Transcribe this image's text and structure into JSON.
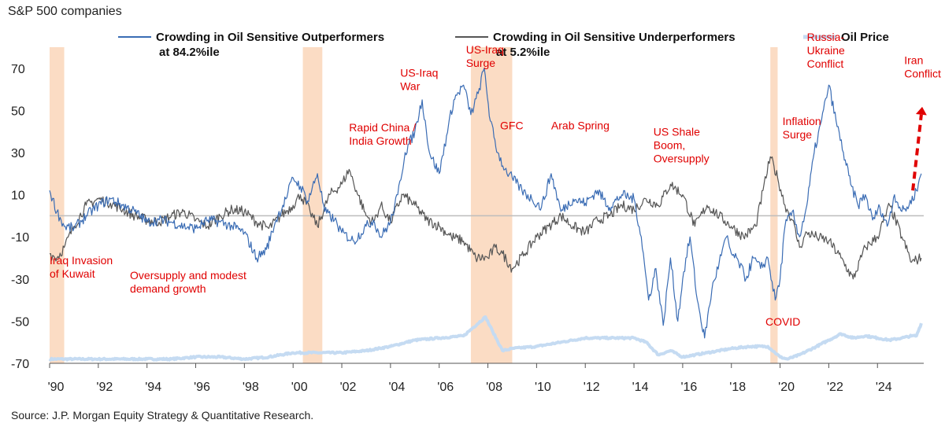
{
  "header": {
    "title": "S&P 500 companies"
  },
  "footer": {
    "source": "Source: J.P. Morgan Equity Strategy & Quantitative Research."
  },
  "chart_data": {
    "type": "line",
    "ylim": [
      -70,
      80
    ],
    "yticks": [
      70,
      50,
      30,
      10,
      -10,
      -30,
      -50,
      -70
    ],
    "xlim": [
      1990,
      2025.9
    ],
    "xticks": [
      {
        "x": 1990,
        "label": "'90"
      },
      {
        "x": 1992,
        "label": "'92"
      },
      {
        "x": 1994,
        "label": "'94"
      },
      {
        "x": 1996,
        "label": "'96"
      },
      {
        "x": 1998,
        "label": "'98"
      },
      {
        "x": 2000,
        "label": "'00"
      },
      {
        "x": 2002,
        "label": "'02"
      },
      {
        "x": 2004,
        "label": "'04"
      },
      {
        "x": 2006,
        "label": "'06"
      },
      {
        "x": 2008,
        "label": "'08"
      },
      {
        "x": 2010,
        "label": "'10"
      },
      {
        "x": 2012,
        "label": "'12"
      },
      {
        "x": 2014,
        "label": "'14"
      },
      {
        "x": 2016,
        "label": "'16"
      },
      {
        "x": 2018,
        "label": "'18"
      },
      {
        "x": 2020,
        "label": "'20"
      },
      {
        "x": 2022,
        "label": "'22"
      },
      {
        "x": 2024,
        "label": "'24"
      }
    ],
    "colors": {
      "outperformers": "#3a6cb4",
      "underperformers": "#555555",
      "oil": "#c5dbf2",
      "shade": "#fbdcc4",
      "annotation": "#e00000",
      "zero": "#bdbdbd"
    },
    "legend": [
      {
        "key": "outperformers",
        "name": "Crowding in Oil Sensitive Outperformers",
        "sub": "at 84.2%ile"
      },
      {
        "key": "underperformers",
        "name": "Crowding in Oil Sensitive Underperformers",
        "sub": "at 5.2%ile"
      },
      {
        "key": "oil",
        "name": "Oil Price",
        "sub": ""
      }
    ],
    "shaded_periods": [
      [
        1990.0,
        1990.6
      ],
      [
        2000.4,
        2001.2
      ],
      [
        2007.3,
        2009.0
      ],
      [
        2019.6,
        2019.9
      ]
    ],
    "series": [
      {
        "key": "outperformers",
        "name": "Crowding in Oil Sensitive Outperformers",
        "x": [
          1990.0,
          1990.3,
          1990.6,
          1991.0,
          1991.5,
          1992.0,
          1992.5,
          1993.0,
          1993.5,
          1994.0,
          1994.5,
          1995.0,
          1995.5,
          1996.0,
          1996.5,
          1997.0,
          1997.5,
          1998.0,
          1998.5,
          1998.9,
          1999.3,
          1999.7,
          2000.0,
          2000.3,
          2000.6,
          2001.0,
          2001.3,
          2001.7,
          2002.0,
          2002.5,
          2003.0,
          2003.3,
          2003.6,
          2004.0,
          2004.3,
          2004.6,
          2005.0,
          2005.3,
          2005.6,
          2006.0,
          2006.3,
          2006.6,
          2007.0,
          2007.3,
          2007.6,
          2007.85,
          2008.1,
          2008.4,
          2008.7,
          2009.0,
          2009.4,
          2009.8,
          2010.2,
          2010.6,
          2011.0,
          2011.5,
          2012.0,
          2012.5,
          2013.0,
          2013.5,
          2014.0,
          2014.3,
          2014.6,
          2014.9,
          2015.2,
          2015.5,
          2015.8,
          2016.0,
          2016.3,
          2016.6,
          2016.9,
          2017.2,
          2017.5,
          2017.8,
          2018.0,
          2018.3,
          2018.6,
          2018.9,
          2019.2,
          2019.5,
          2019.8,
          2020.0,
          2020.2,
          2020.5,
          2020.8,
          2021.1,
          2021.4,
          2021.7,
          2022.0,
          2022.3,
          2022.6,
          2022.9,
          2023.2,
          2023.5,
          2023.8,
          2024.1,
          2024.4,
          2024.7,
          2025.0,
          2025.3,
          2025.6,
          2025.8
        ],
        "values": [
          12,
          2,
          -5,
          -6,
          0,
          5,
          8,
          5,
          2,
          -3,
          -2,
          -3,
          -5,
          -6,
          -2,
          -3,
          -5,
          -8,
          -20,
          -16,
          -2,
          8,
          18,
          14,
          7,
          20,
          2,
          -2,
          -8,
          -12,
          -5,
          -2,
          -10,
          -3,
          10,
          30,
          40,
          55,
          30,
          20,
          38,
          55,
          62,
          48,
          58,
          70,
          45,
          30,
          22,
          18,
          12,
          8,
          4,
          20,
          2,
          8,
          6,
          12,
          4,
          10,
          8,
          -10,
          -40,
          -25,
          -52,
          -20,
          -50,
          -30,
          -10,
          -40,
          -58,
          -35,
          -22,
          -10,
          -18,
          -22,
          -30,
          -20,
          -25,
          -20,
          -40,
          -30,
          -5,
          2,
          -10,
          5,
          30,
          45,
          62,
          45,
          30,
          15,
          5,
          10,
          -2,
          4,
          -5,
          10,
          2,
          5,
          12,
          20
        ]
      },
      {
        "key": "underperformers",
        "name": "Crowding in Oil Sensitive Underperformers",
        "x": [
          1990.0,
          1990.3,
          1990.6,
          1991.0,
          1991.5,
          1992.0,
          1992.5,
          1993.0,
          1993.5,
          1994.0,
          1994.5,
          1995.0,
          1995.5,
          1996.0,
          1996.5,
          1997.0,
          1997.5,
          1998.0,
          1998.5,
          1999.0,
          1999.5,
          2000.0,
          2000.3,
          2000.7,
          2001.0,
          2001.5,
          2002.0,
          2002.3,
          2002.6,
          2003.0,
          2003.3,
          2003.6,
          2004.0,
          2004.5,
          2005.0,
          2005.5,
          2006.0,
          2006.5,
          2007.0,
          2007.5,
          2008.0,
          2008.3,
          2008.6,
          2009.0,
          2009.5,
          2010.0,
          2010.5,
          2011.0,
          2011.5,
          2012.0,
          2012.5,
          2013.0,
          2013.5,
          2014.0,
          2014.5,
          2015.0,
          2015.5,
          2016.0,
          2016.5,
          2017.0,
          2017.5,
          2018.0,
          2018.5,
          2019.0,
          2019.3,
          2019.6,
          2019.9,
          2020.2,
          2020.5,
          2020.8,
          2021.1,
          2021.5,
          2022.0,
          2022.5,
          2023.0,
          2023.5,
          2024.0,
          2024.5,
          2025.0,
          2025.4,
          2025.8
        ],
        "values": [
          -18,
          -20,
          -15,
          -5,
          5,
          8,
          6,
          3,
          0,
          -2,
          -3,
          0,
          2,
          -2,
          -5,
          0,
          3,
          2,
          -3,
          -6,
          0,
          5,
          10,
          2,
          -5,
          10,
          15,
          22,
          12,
          0,
          -3,
          5,
          -3,
          10,
          5,
          -2,
          -5,
          -10,
          -12,
          -20,
          -20,
          -15,
          -18,
          -25,
          -18,
          -10,
          -5,
          0,
          -5,
          -8,
          -2,
          0,
          5,
          3,
          8,
          5,
          15,
          10,
          -5,
          5,
          0,
          -5,
          -10,
          -5,
          12,
          28,
          18,
          5,
          -2,
          -15,
          -8,
          -10,
          -12,
          -20,
          -30,
          -15,
          -10,
          5,
          -10,
          -22,
          -20
        ]
      },
      {
        "key": "oil",
        "name": "Oil Price",
        "x": [
          1990.0,
          1991.0,
          1992.0,
          1993.0,
          1994.0,
          1995.0,
          1996.0,
          1997.0,
          1998.0,
          1999.0,
          2000.0,
          2001.0,
          2002.0,
          2003.0,
          2004.0,
          2005.0,
          2006.0,
          2007.0,
          2007.4,
          2007.9,
          2008.2,
          2008.6,
          2009.0,
          2010.0,
          2011.0,
          2012.0,
          2013.0,
          2014.0,
          2014.5,
          2015.0,
          2015.5,
          2016.0,
          2016.5,
          2017.0,
          2018.0,
          2018.8,
          2019.5,
          2020.0,
          2020.3,
          2020.8,
          2021.5,
          2022.0,
          2022.5,
          2023.0,
          2023.5,
          2024.0,
          2024.5,
          2025.0,
          2025.4,
          2025.6,
          2025.8
        ],
        "values": [
          -68,
          -68,
          -68,
          -68,
          -68,
          -68,
          -67,
          -67,
          -68,
          -67,
          -65,
          -65,
          -65,
          -64,
          -62,
          -59,
          -58,
          -57,
          -53,
          -48,
          -55,
          -64,
          -63,
          -62,
          -60,
          -58,
          -58,
          -58,
          -60,
          -66,
          -64,
          -67,
          -66,
          -65,
          -63,
          -62,
          -62,
          -67,
          -68,
          -66,
          -62,
          -59,
          -56,
          -58,
          -57,
          -58,
          -59,
          -58,
          -57,
          -57,
          -51
        ]
      }
    ],
    "annotations": [
      {
        "x": 1990.0,
        "y": -23,
        "text": [
          "Iraq Invasion",
          "of Kuwait"
        ]
      },
      {
        "x": 1993.3,
        "y": -30,
        "text": [
          "Oversupply and modest",
          "demand growth"
        ]
      },
      {
        "x": 2004.4,
        "y": 66,
        "text": [
          "US-Iraq",
          "War"
        ]
      },
      {
        "x": 2002.3,
        "y": 40,
        "text": [
          "Rapid China /",
          "India Growth"
        ]
      },
      {
        "x": 2007.1,
        "y": 77,
        "text": [
          "US-Iraq",
          "Surge"
        ]
      },
      {
        "x": 2008.5,
        "y": 41,
        "text": [
          "GFC"
        ]
      },
      {
        "x": 2010.6,
        "y": 41,
        "text": [
          "Arab Spring"
        ]
      },
      {
        "x": 2014.8,
        "y": 38,
        "text": [
          "US Shale",
          "Boom,",
          "Oversupply"
        ]
      },
      {
        "x": 2019.4,
        "y": -52,
        "text": [
          "COVID"
        ]
      },
      {
        "x": 2020.1,
        "y": 43,
        "text": [
          "Inflation",
          "Surge"
        ]
      },
      {
        "x": 2021.1,
        "y": 83,
        "text": [
          "Russia-",
          "Ukraine",
          "Conflict"
        ]
      },
      {
        "x": 2025.1,
        "y": 72,
        "text": [
          "Iran",
          "Conflict"
        ]
      }
    ]
  }
}
